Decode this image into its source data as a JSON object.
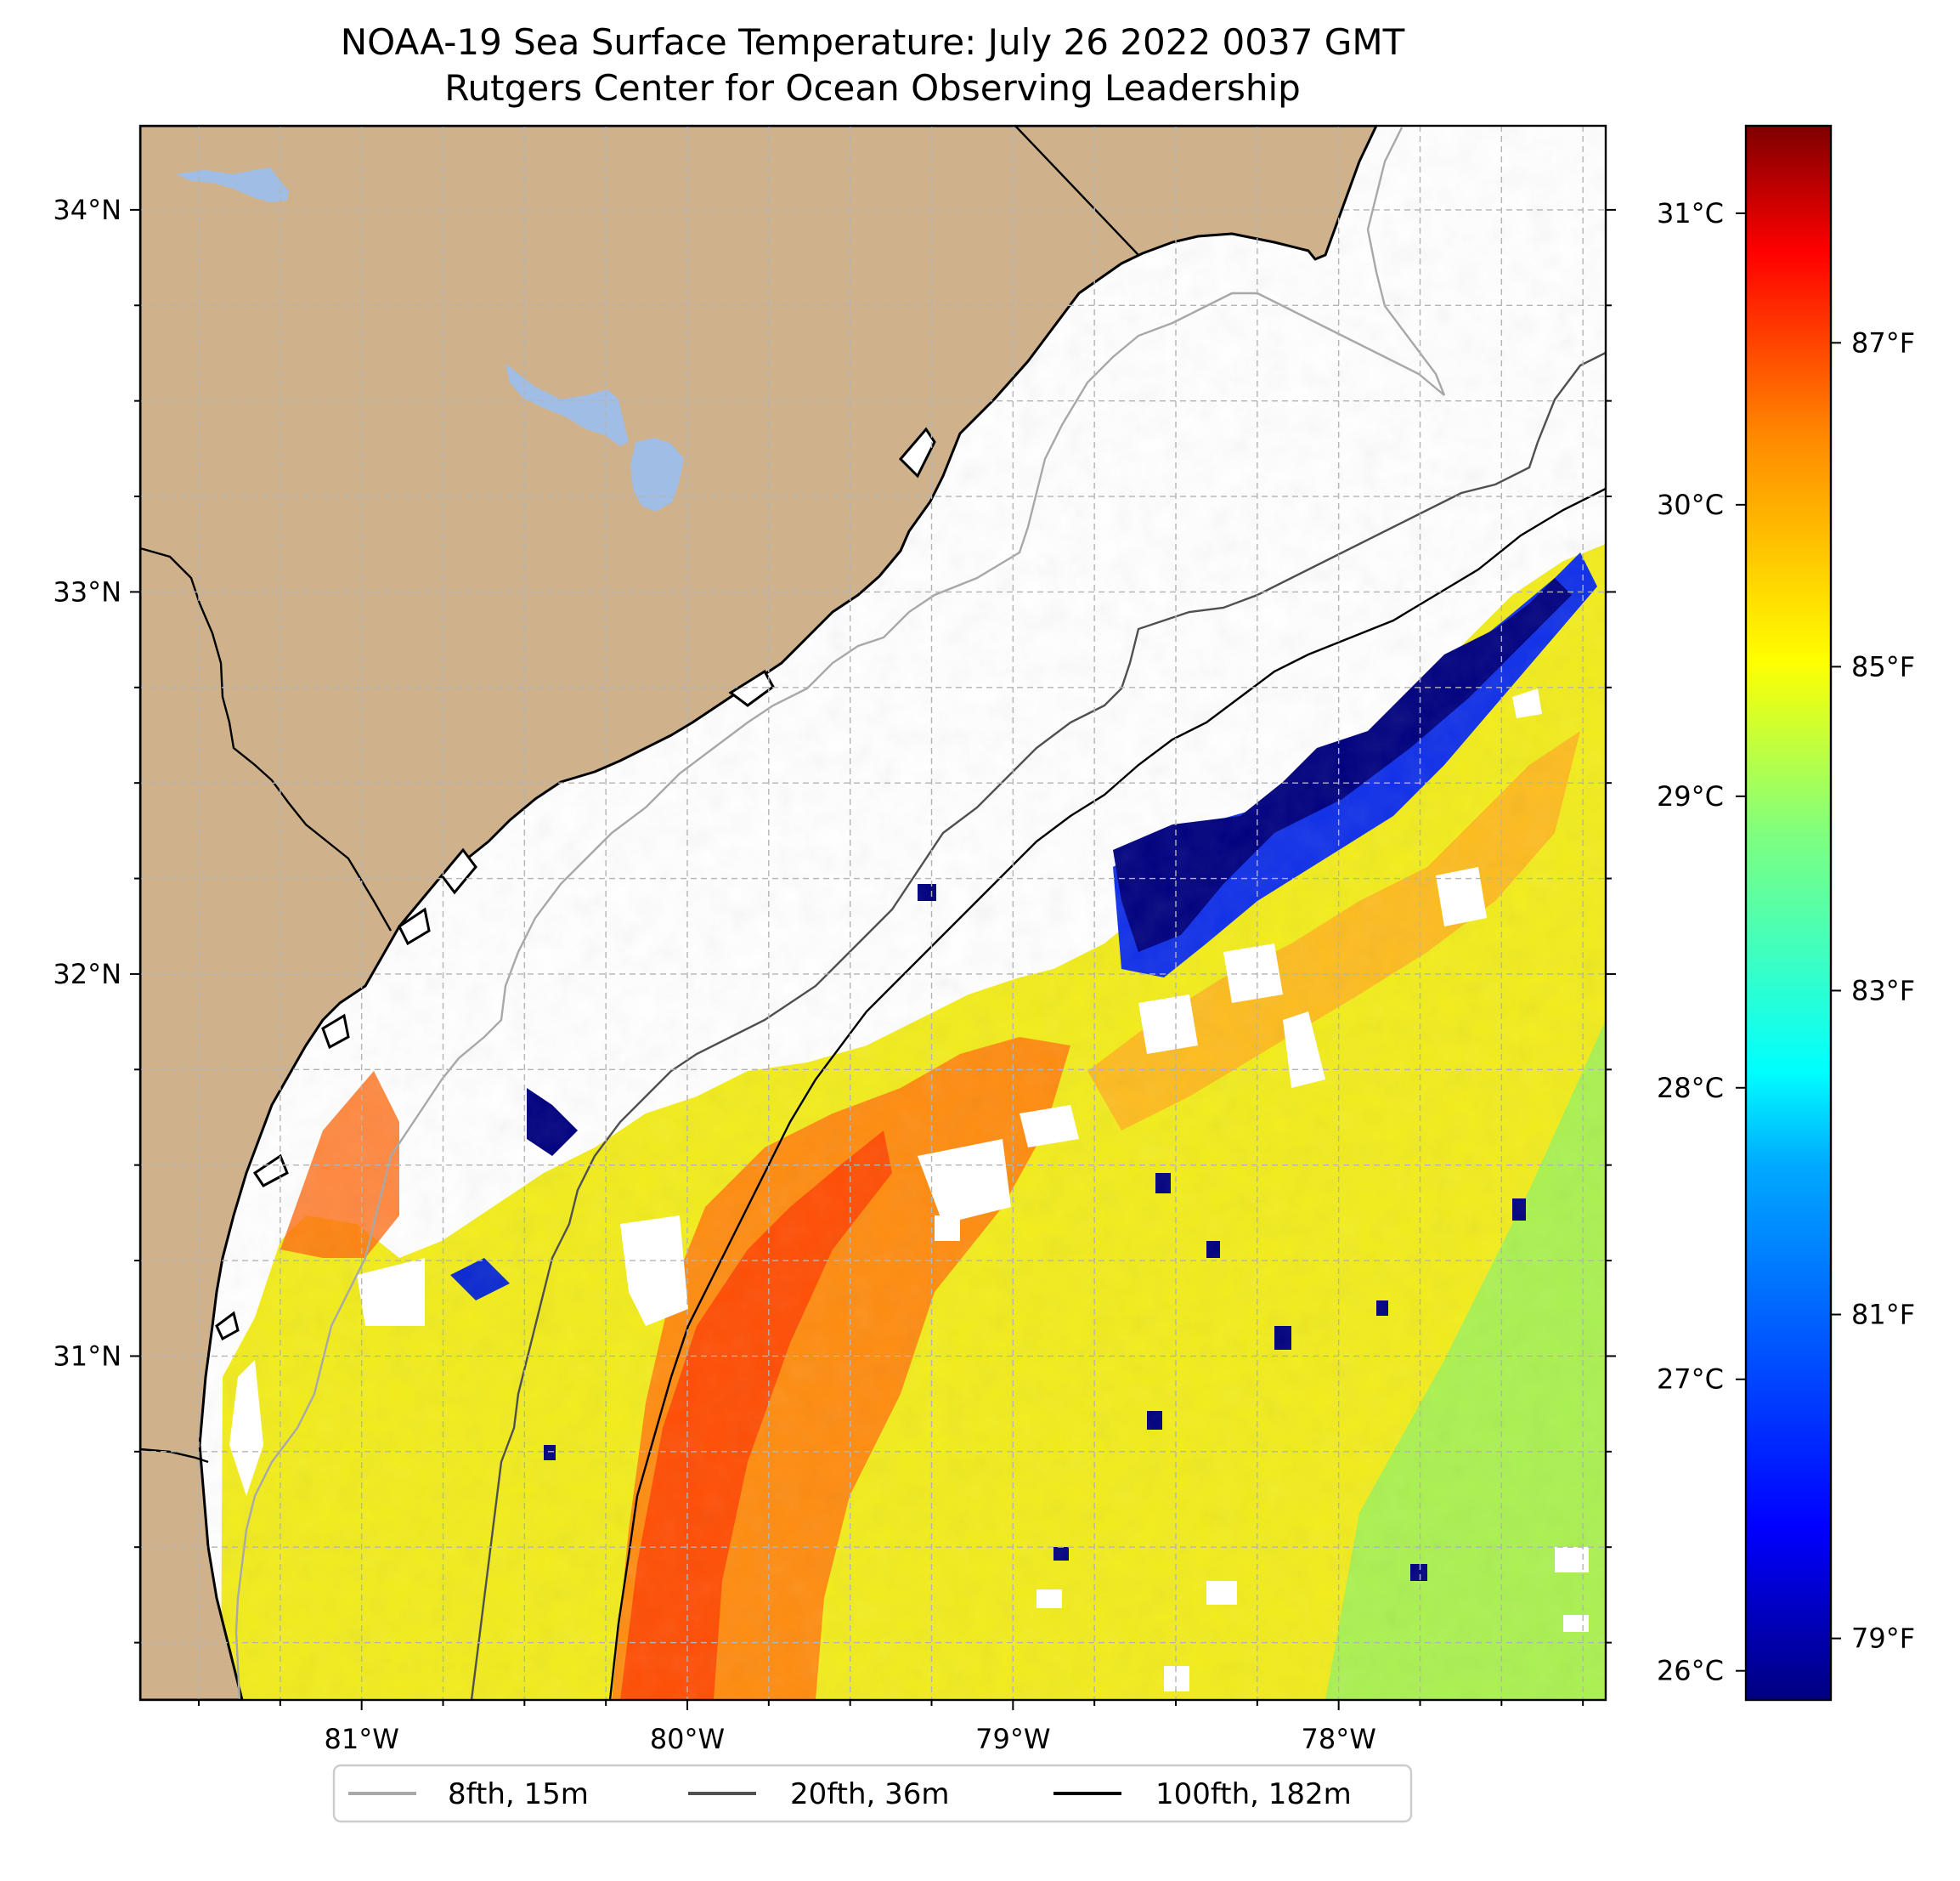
{
  "title": {
    "line1": "NOAA-19 Sea Surface Temperature: July 26 2022 0037 GMT",
    "line2": "Rutgers Center for Ocean Observing Leadership"
  },
  "map": {
    "lon_range": [
      -81.68,
      -77.18
    ],
    "lat_range": [
      30.1,
      34.22
    ],
    "lat_ticks": [
      {
        "value": 34,
        "label": "34°N"
      },
      {
        "value": 33,
        "label": "33°N"
      },
      {
        "value": 32,
        "label": "32°N"
      },
      {
        "value": 31,
        "label": "31°N"
      }
    ],
    "lon_ticks": [
      {
        "value": -81,
        "label": "81°W"
      },
      {
        "value": -80,
        "label": "80°W"
      },
      {
        "value": -79,
        "label": "79°W"
      },
      {
        "value": -78,
        "label": "78°W"
      }
    ],
    "colors": {
      "land": "#cfb28c",
      "lake": "#a0bde5",
      "gridline": "#b4b4b4",
      "iso_15m": "#a8a8a8",
      "iso_36m": "#505050",
      "iso_182m": "#000000"
    }
  },
  "colorbar": {
    "range_c": [
      25.9,
      31.3
    ],
    "celsius_ticks": [
      {
        "value": 31,
        "label": "31°C"
      },
      {
        "value": 30,
        "label": "30°C"
      },
      {
        "value": 29,
        "label": "29°C"
      },
      {
        "value": 28,
        "label": "28°C"
      },
      {
        "value": 27,
        "label": "27°C"
      },
      {
        "value": 26,
        "label": "26°C"
      }
    ],
    "fahrenheit_ticks": [
      {
        "value": 87,
        "label": "87°F"
      },
      {
        "value": 85,
        "label": "85°F"
      },
      {
        "value": 83,
        "label": "83°F"
      },
      {
        "value": 81,
        "label": "81°F"
      },
      {
        "value": 79,
        "label": "79°F"
      }
    ],
    "colormap": [
      "#00007f",
      "#0000ff",
      "#007fff",
      "#00ffff",
      "#7fff7f",
      "#ffff00",
      "#ff7f00",
      "#ff0000",
      "#7f0000"
    ]
  },
  "legend": {
    "items": [
      {
        "label": "8fth, 15m",
        "color": "#a8a8a8"
      },
      {
        "label": "20fth, 36m",
        "color": "#505050"
      },
      {
        "label": "100fth, 182m",
        "color": "#000000"
      }
    ]
  }
}
